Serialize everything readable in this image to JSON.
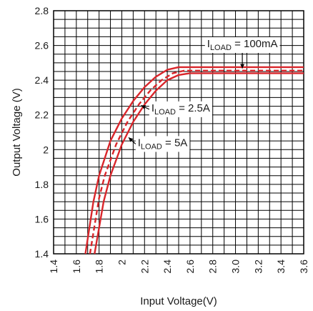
{
  "chart_data": {
    "type": "line",
    "xlabel": "Input Voltage(V)",
    "ylabel": "Output  Voltage (V)",
    "xlim": [
      1.4,
      3.6
    ],
    "ylim": [
      1.4,
      2.8
    ],
    "grid": true,
    "minor_grid_step_x": 0.1,
    "minor_grid_step_y": 0.05,
    "x_ticks": [
      "1.4",
      "1.6",
      "1.8",
      "2",
      "2.2",
      "2.4",
      "2.6",
      "2.8",
      "3.0",
      "3.2",
      "3.4",
      "3.6"
    ],
    "y_ticks": [
      "1.4",
      "1.6",
      "1.8",
      "2",
      "2.2",
      "2.4",
      "2.6",
      "2.8"
    ],
    "colors": {
      "curve": "#d9262b",
      "grid": "#000000"
    },
    "series": [
      {
        "label_main": "I",
        "label_sub": "LOAD",
        "label_rest": " = 100mA",
        "dash": false,
        "points": [
          [
            1.68,
            1.4
          ],
          [
            1.75,
            1.7
          ],
          [
            1.8,
            1.85
          ],
          [
            1.9,
            2.05
          ],
          [
            2.0,
            2.18
          ],
          [
            2.1,
            2.28
          ],
          [
            2.2,
            2.36
          ],
          [
            2.3,
            2.42
          ],
          [
            2.4,
            2.46
          ],
          [
            2.5,
            2.475
          ],
          [
            2.6,
            2.475
          ],
          [
            2.8,
            2.475
          ],
          [
            3.0,
            2.475
          ],
          [
            3.2,
            2.475
          ],
          [
            3.4,
            2.475
          ],
          [
            3.6,
            2.475
          ]
        ]
      },
      {
        "label_main": "",
        "label_sub": "",
        "label_rest": "",
        "dash": true,
        "points": [
          [
            1.72,
            1.4
          ],
          [
            1.8,
            1.72
          ],
          [
            1.85,
            1.85
          ],
          [
            1.95,
            2.03
          ],
          [
            2.05,
            2.16
          ],
          [
            2.15,
            2.26
          ],
          [
            2.25,
            2.34
          ],
          [
            2.35,
            2.4
          ],
          [
            2.45,
            2.44
          ],
          [
            2.55,
            2.455
          ],
          [
            2.7,
            2.455
          ],
          [
            3.0,
            2.455
          ],
          [
            3.3,
            2.455
          ],
          [
            3.6,
            2.455
          ]
        ]
      },
      {
        "label_main": "I",
        "label_sub": "LOAD",
        "label_rest": " = 2.5A",
        "dash": false,
        "points": [
          [
            1.76,
            1.4
          ],
          [
            1.84,
            1.7
          ],
          [
            1.9,
            1.85
          ],
          [
            2.0,
            2.03
          ],
          [
            2.1,
            2.16
          ],
          [
            2.2,
            2.26
          ],
          [
            2.3,
            2.34
          ],
          [
            2.4,
            2.4
          ],
          [
            2.5,
            2.43
          ],
          [
            2.6,
            2.44
          ],
          [
            2.8,
            2.44
          ],
          [
            3.0,
            2.44
          ],
          [
            3.3,
            2.44
          ],
          [
            3.6,
            2.44
          ]
        ]
      }
    ],
    "annotations": [
      {
        "main": "I",
        "sub": "LOAD",
        "rest": " = 100mA",
        "x": 2.75,
        "y": 2.59,
        "arrow_to": [
          3.06,
          2.468
        ]
      },
      {
        "main": "I",
        "sub": "LOAD",
        "rest": " = 2.5A",
        "x": 2.26,
        "y": 2.22,
        "arrow_to": [
          2.17,
          2.255
        ]
      },
      {
        "main": "I",
        "sub": "LOAD",
        "rest": " = 5A",
        "x": 2.14,
        "y": 2.02,
        "arrow_to": [
          2.06,
          2.07
        ]
      }
    ]
  }
}
